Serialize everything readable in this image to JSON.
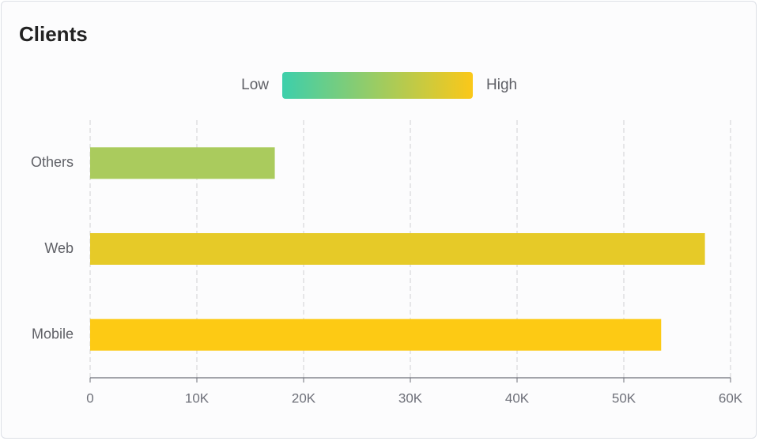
{
  "chart_data": {
    "type": "bar",
    "orientation": "horizontal",
    "title": "Clients",
    "categories": [
      "Mobile",
      "Web",
      "Others"
    ],
    "values": [
      53500,
      57600,
      17300
    ],
    "colors": [
      "#fdca14",
      "#e6ca28",
      "#aacb5d"
    ],
    "visual_map": {
      "low_label": "Low",
      "high_label": "High",
      "colors": [
        "#3dcfab",
        "#fbc819"
      ]
    },
    "xlim": [
      0,
      60000
    ],
    "xticks": [
      0,
      {
        "value": 10000,
        "label": "10K"
      },
      {
        "value": 20000,
        "label": "20K"
      },
      {
        "value": 30000,
        "label": "30K"
      },
      {
        "value": 40000,
        "label": "40K"
      },
      {
        "value": 50000,
        "label": "50K"
      },
      {
        "value": 60000,
        "label": "60K"
      }
    ],
    "grid": true
  }
}
